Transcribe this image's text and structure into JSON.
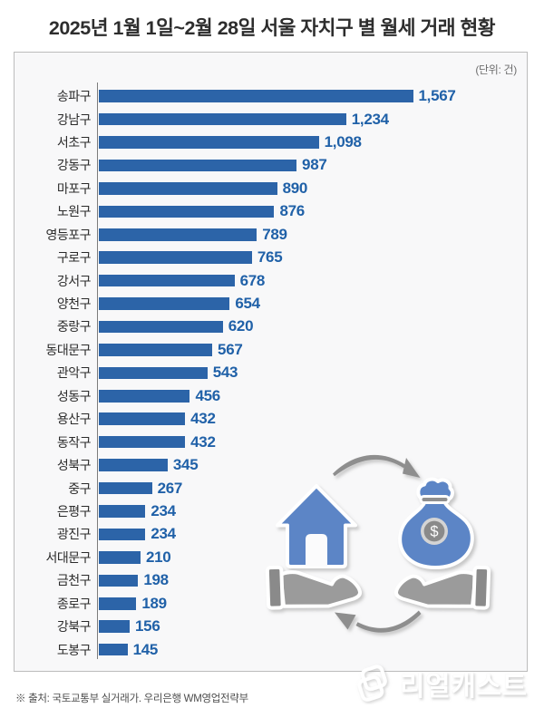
{
  "title": "2025년 1월 1일~2월 28일 서울 자치구 별 월세 거래 현황",
  "unit_label": "(단위: 건)",
  "source_note": "※ 출처: 국토교통부 실거래가. 우리은행 WM영업전략부",
  "watermark_text": "리얼캐스트",
  "colors": {
    "bar": "#2c64a8",
    "value_text": "#2061a8",
    "label_text": "#2b2b2b",
    "axis": "#7c7c7c",
    "panel_background": "#f8f8f9",
    "panel_border": "#bcbcbc",
    "illustration_blue": "#5b85c6",
    "illustration_gray": "#9b9b9b"
  },
  "illustration": {
    "name": "hand-offering-house-exchanged-for-hand-offering-money-bag",
    "money_bag_symbol": "$"
  },
  "chart_data": {
    "type": "bar",
    "orientation": "horizontal",
    "title": "2025년 1월 1일~2월 28일 서울 자치구 별 월세 거래 현황",
    "unit": "건",
    "xlabel": "",
    "ylabel": "",
    "xlim": [
      0,
      1670
    ],
    "grid": false,
    "legend": false,
    "categories": [
      "송파구",
      "강남구",
      "서초구",
      "강동구",
      "마포구",
      "노원구",
      "영등포구",
      "구로구",
      "강서구",
      "양천구",
      "중랑구",
      "동대문구",
      "관악구",
      "성동구",
      "용산구",
      "동작구",
      "성북구",
      "중구",
      "은평구",
      "광진구",
      "서대문구",
      "금천구",
      "종로구",
      "강북구",
      "도봉구"
    ],
    "values": [
      1567,
      1234,
      1098,
      987,
      890,
      876,
      789,
      765,
      678,
      654,
      620,
      567,
      543,
      456,
      432,
      432,
      345,
      267,
      234,
      234,
      210,
      198,
      189,
      156,
      145
    ],
    "value_labels": [
      "1,567",
      "1,234",
      "1,098",
      "987",
      "890",
      "876",
      "789",
      "765",
      "678",
      "654",
      "620",
      "567",
      "543",
      "456",
      "432",
      "432",
      "345",
      "267",
      "234",
      "234",
      "210",
      "198",
      "189",
      "156",
      "145"
    ]
  }
}
